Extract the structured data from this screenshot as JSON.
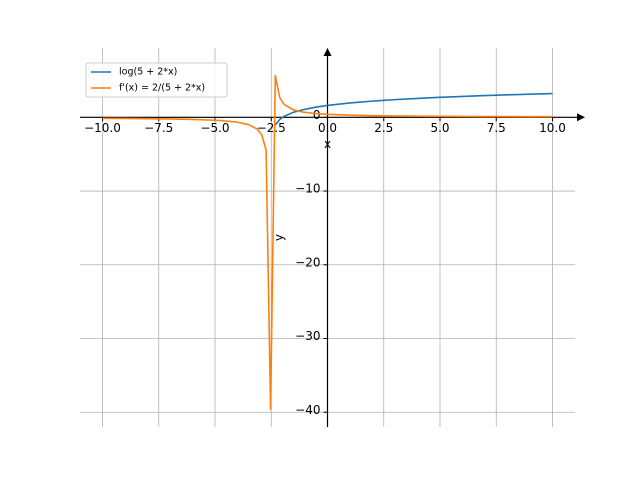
{
  "chart_data": {
    "type": "line",
    "x": [
      -10,
      -9,
      -8,
      -7,
      -6,
      -5,
      -4.5,
      -4,
      -3.5,
      -3.13,
      -2.93,
      -2.73,
      -2.53,
      -2.32,
      -2.12,
      -1.92,
      -1.52,
      -1.11,
      -0.5,
      0,
      1,
      2,
      3,
      4,
      5,
      6,
      7,
      8,
      9,
      10
    ],
    "series": [
      {
        "name": "log(5 + 2*x)",
        "color": "#1f77b4",
        "values": [
          null,
          null,
          null,
          null,
          null,
          null,
          null,
          null,
          null,
          null,
          null,
          null,
          null,
          -1.04,
          -0.278,
          0.15,
          0.678,
          1.022,
          1.386,
          1.609,
          1.946,
          2.197,
          2.398,
          2.565,
          2.708,
          2.833,
          2.944,
          3.045,
          3.135,
          3.219
        ]
      },
      {
        "name": "f'(x) = 2/(5 + 2*x)",
        "color": "#ff7f0e",
        "values": [
          -0.133,
          -0.154,
          -0.182,
          -0.222,
          -0.286,
          -0.4,
          -0.5,
          -0.667,
          -1,
          -1.584,
          -2.329,
          -4.4,
          -39.6,
          5.657,
          2.64,
          1.722,
          1.015,
          0.72,
          0.5,
          0.4,
          0.286,
          0.222,
          0.182,
          0.154,
          0.133,
          0.118,
          0.105,
          0.095,
          0.087,
          0.08
        ]
      }
    ],
    "x_label": "x",
    "y_label": "y",
    "xlim": [
      -11,
      11
    ],
    "ylim": [
      -42,
      9.4
    ],
    "xticks": [
      {
        "value": -10,
        "label": "−10.0"
      },
      {
        "value": -7.5,
        "label": "−7.5"
      },
      {
        "value": -5,
        "label": "−5.0"
      },
      {
        "value": -2.5,
        "label": "−2.5"
      },
      {
        "value": 0,
        "label": "0.0"
      },
      {
        "value": 2.5,
        "label": "2.5"
      },
      {
        "value": 5,
        "label": "5.0"
      },
      {
        "value": 7.5,
        "label": "7.5"
      },
      {
        "value": 10,
        "label": "10.0"
      }
    ],
    "yticks": [
      {
        "value": -40,
        "label": "−40"
      },
      {
        "value": -30,
        "label": "−30"
      },
      {
        "value": -20,
        "label": "−20"
      },
      {
        "value": -10,
        "label": "−10"
      },
      0
    ],
    "grid": true,
    "legend": "upper-left"
  }
}
